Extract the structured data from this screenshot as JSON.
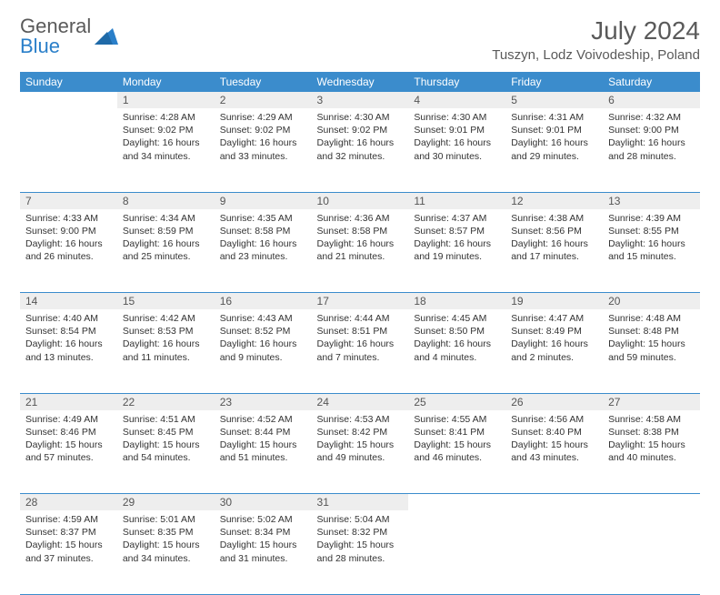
{
  "logo": {
    "line1": "General",
    "line2": "Blue"
  },
  "title": "July 2024",
  "location": "Tuszyn, Lodz Voivodeship, Poland",
  "colors": {
    "header_bg": "#3b8ccc",
    "header_text": "#ffffff",
    "daynum_bg": "#eeeeee",
    "border": "#3b8ccc",
    "logo_gray": "#5a5a5a",
    "logo_blue": "#2a7fc9"
  },
  "weekdays": [
    "Sunday",
    "Monday",
    "Tuesday",
    "Wednesday",
    "Thursday",
    "Friday",
    "Saturday"
  ],
  "weeks": [
    [
      null,
      {
        "n": "1",
        "sunrise": "4:28 AM",
        "sunset": "9:02 PM",
        "daylight": "16 hours and 34 minutes."
      },
      {
        "n": "2",
        "sunrise": "4:29 AM",
        "sunset": "9:02 PM",
        "daylight": "16 hours and 33 minutes."
      },
      {
        "n": "3",
        "sunrise": "4:30 AM",
        "sunset": "9:02 PM",
        "daylight": "16 hours and 32 minutes."
      },
      {
        "n": "4",
        "sunrise": "4:30 AM",
        "sunset": "9:01 PM",
        "daylight": "16 hours and 30 minutes."
      },
      {
        "n": "5",
        "sunrise": "4:31 AM",
        "sunset": "9:01 PM",
        "daylight": "16 hours and 29 minutes."
      },
      {
        "n": "6",
        "sunrise": "4:32 AM",
        "sunset": "9:00 PM",
        "daylight": "16 hours and 28 minutes."
      }
    ],
    [
      {
        "n": "7",
        "sunrise": "4:33 AM",
        "sunset": "9:00 PM",
        "daylight": "16 hours and 26 minutes."
      },
      {
        "n": "8",
        "sunrise": "4:34 AM",
        "sunset": "8:59 PM",
        "daylight": "16 hours and 25 minutes."
      },
      {
        "n": "9",
        "sunrise": "4:35 AM",
        "sunset": "8:58 PM",
        "daylight": "16 hours and 23 minutes."
      },
      {
        "n": "10",
        "sunrise": "4:36 AM",
        "sunset": "8:58 PM",
        "daylight": "16 hours and 21 minutes."
      },
      {
        "n": "11",
        "sunrise": "4:37 AM",
        "sunset": "8:57 PM",
        "daylight": "16 hours and 19 minutes."
      },
      {
        "n": "12",
        "sunrise": "4:38 AM",
        "sunset": "8:56 PM",
        "daylight": "16 hours and 17 minutes."
      },
      {
        "n": "13",
        "sunrise": "4:39 AM",
        "sunset": "8:55 PM",
        "daylight": "16 hours and 15 minutes."
      }
    ],
    [
      {
        "n": "14",
        "sunrise": "4:40 AM",
        "sunset": "8:54 PM",
        "daylight": "16 hours and 13 minutes."
      },
      {
        "n": "15",
        "sunrise": "4:42 AM",
        "sunset": "8:53 PM",
        "daylight": "16 hours and 11 minutes."
      },
      {
        "n": "16",
        "sunrise": "4:43 AM",
        "sunset": "8:52 PM",
        "daylight": "16 hours and 9 minutes."
      },
      {
        "n": "17",
        "sunrise": "4:44 AM",
        "sunset": "8:51 PM",
        "daylight": "16 hours and 7 minutes."
      },
      {
        "n": "18",
        "sunrise": "4:45 AM",
        "sunset": "8:50 PM",
        "daylight": "16 hours and 4 minutes."
      },
      {
        "n": "19",
        "sunrise": "4:47 AM",
        "sunset": "8:49 PM",
        "daylight": "16 hours and 2 minutes."
      },
      {
        "n": "20",
        "sunrise": "4:48 AM",
        "sunset": "8:48 PM",
        "daylight": "15 hours and 59 minutes."
      }
    ],
    [
      {
        "n": "21",
        "sunrise": "4:49 AM",
        "sunset": "8:46 PM",
        "daylight": "15 hours and 57 minutes."
      },
      {
        "n": "22",
        "sunrise": "4:51 AM",
        "sunset": "8:45 PM",
        "daylight": "15 hours and 54 minutes."
      },
      {
        "n": "23",
        "sunrise": "4:52 AM",
        "sunset": "8:44 PM",
        "daylight": "15 hours and 51 minutes."
      },
      {
        "n": "24",
        "sunrise": "4:53 AM",
        "sunset": "8:42 PM",
        "daylight": "15 hours and 49 minutes."
      },
      {
        "n": "25",
        "sunrise": "4:55 AM",
        "sunset": "8:41 PM",
        "daylight": "15 hours and 46 minutes."
      },
      {
        "n": "26",
        "sunrise": "4:56 AM",
        "sunset": "8:40 PM",
        "daylight": "15 hours and 43 minutes."
      },
      {
        "n": "27",
        "sunrise": "4:58 AM",
        "sunset": "8:38 PM",
        "daylight": "15 hours and 40 minutes."
      }
    ],
    [
      {
        "n": "28",
        "sunrise": "4:59 AM",
        "sunset": "8:37 PM",
        "daylight": "15 hours and 37 minutes."
      },
      {
        "n": "29",
        "sunrise": "5:01 AM",
        "sunset": "8:35 PM",
        "daylight": "15 hours and 34 minutes."
      },
      {
        "n": "30",
        "sunrise": "5:02 AM",
        "sunset": "8:34 PM",
        "daylight": "15 hours and 31 minutes."
      },
      {
        "n": "31",
        "sunrise": "5:04 AM",
        "sunset": "8:32 PM",
        "daylight": "15 hours and 28 minutes."
      },
      null,
      null,
      null
    ]
  ],
  "labels": {
    "sunrise": "Sunrise:",
    "sunset": "Sunset:",
    "daylight": "Daylight:"
  }
}
